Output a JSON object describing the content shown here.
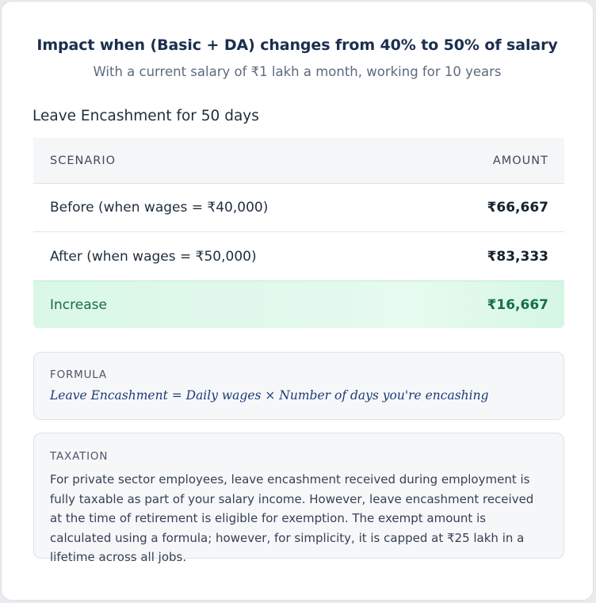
{
  "header": {
    "title": "Impact when (Basic + DA) changes from 40% to 50% of salary",
    "subtitle": "With a current salary of ₹1 lakh a month, working for 10 years"
  },
  "section": {
    "heading": "Leave Encashment for 50 days"
  },
  "table": {
    "columns": [
      "SCENARIO",
      "AMOUNT"
    ],
    "rows": [
      {
        "scenario": "Before (when wages = ₹40,000)",
        "amount": "₹66,667"
      },
      {
        "scenario": "After (when wages = ₹50,000)",
        "amount": "₹83,333"
      }
    ],
    "increase": {
      "label": "Increase",
      "amount": "₹16,667"
    }
  },
  "formula": {
    "label": "FORMULA",
    "text": "Leave Encashment = Daily wages × Number of days you're encashing"
  },
  "taxation": {
    "label": "TAXATION",
    "text": "For private sector employees, leave encashment received during employment is fully taxable as part of your salary income. However, leave encashment received at the time of retirement is eligible for exemption. The exempt amount is calculated using a formula; however, for simplicity, it is capped at ₹25 lakh in a lifetime across all jobs."
  },
  "colors": {
    "title": "#1b2f4e",
    "increase_bg": "#d9f7e7",
    "increase_text": "#12704a",
    "formula_text": "#1b3a7a"
  }
}
